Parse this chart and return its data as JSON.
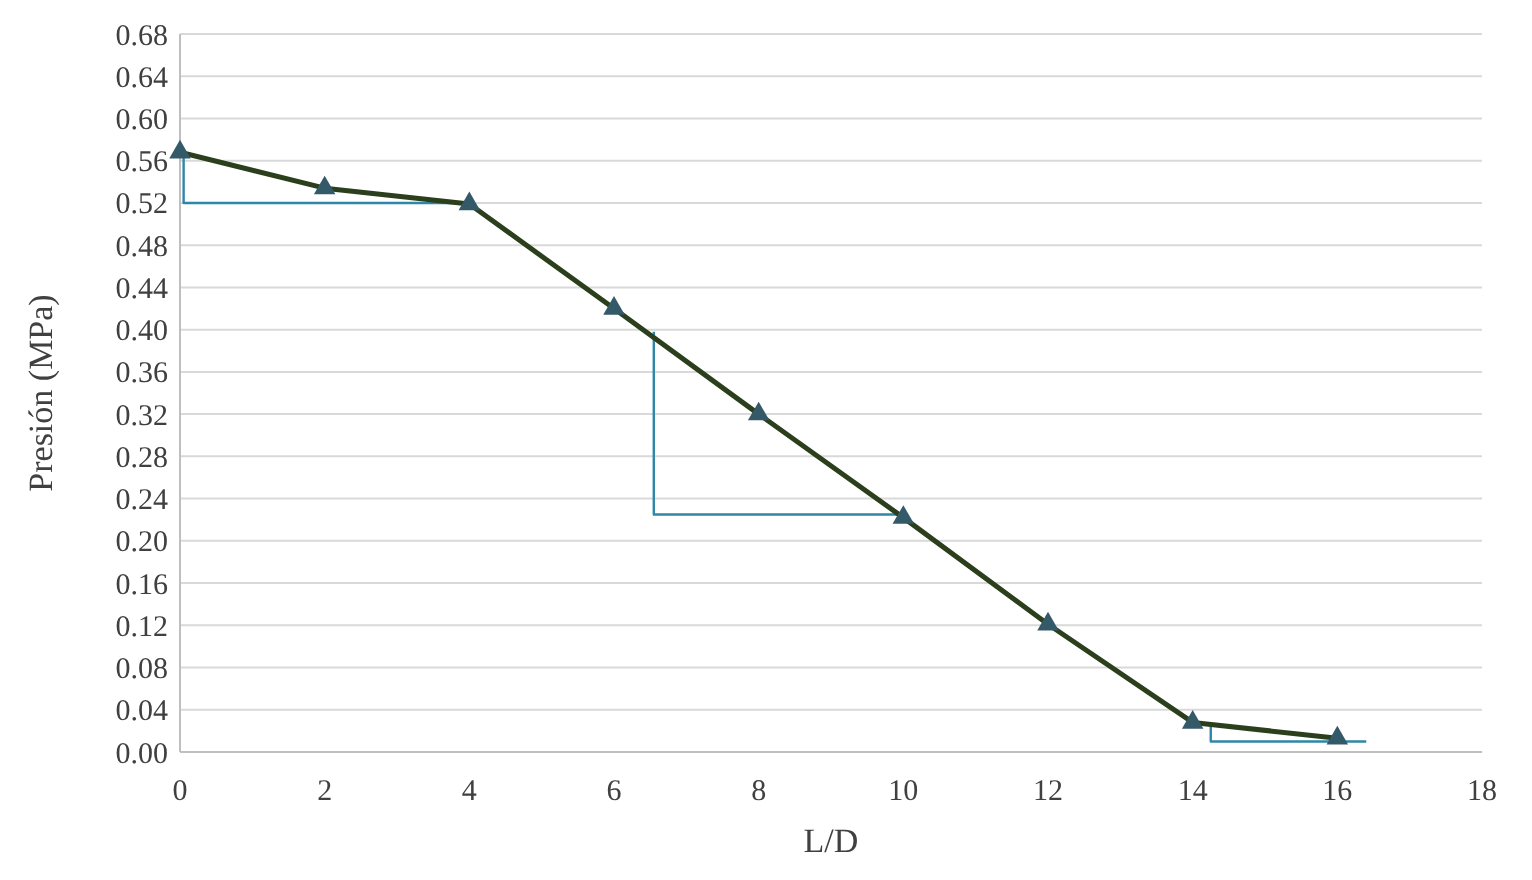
{
  "chart_data": {
    "type": "line",
    "xlabel": "L/D",
    "ylabel": "Presión (MPa)",
    "xlim": [
      0,
      18
    ],
    "xticks": [
      0,
      2,
      4,
      6,
      8,
      10,
      12,
      14,
      16,
      18
    ],
    "ylim": [
      0,
      0.68
    ],
    "yticks": [
      {
        "value": 0,
        "label": "0.00"
      },
      {
        "value": 0.04,
        "label": "0.04"
      },
      {
        "value": 0.08,
        "label": "0.08"
      },
      {
        "value": 0.12,
        "label": "0.12"
      },
      {
        "value": 0.16,
        "label": "0.16"
      },
      {
        "value": 0.2,
        "label": "0.20"
      },
      {
        "value": 0.24,
        "label": "0.24"
      },
      {
        "value": 0.28,
        "label": "0.28"
      },
      {
        "value": 0.32,
        "label": "0.32"
      },
      {
        "value": 0.36,
        "label": "0.36"
      },
      {
        "value": 0.4,
        "label": "0.40"
      },
      {
        "value": 0.44,
        "label": "0.44"
      },
      {
        "value": 0.48,
        "label": "0.48"
      },
      {
        "value": 0.52,
        "label": "0.52"
      },
      {
        "value": 0.56,
        "label": "0.56"
      },
      {
        "value": 0.6,
        "label": "0.60"
      },
      {
        "value": 0.64,
        "label": "0.64"
      },
      {
        "value": 0.68,
        "label": "0.68"
      }
    ],
    "grid": "y",
    "series": [
      {
        "x": [
          0.05,
          0.05,
          4
        ],
        "values": [
          0.568,
          0.52,
          0.52
        ],
        "color": "#2e86a8",
        "marker": "none"
      },
      {
        "x": [
          6.55,
          6.55,
          10
        ],
        "values": [
          0.398,
          0.225,
          0.225
        ],
        "color": "#2e86a8",
        "marker": "none"
      },
      {
        "x": [
          14.25,
          14.25,
          16.4
        ],
        "values": [
          0.026,
          0.01,
          0.01
        ],
        "color": "#2e86a8",
        "marker": "none"
      },
      {
        "x": [
          0,
          2,
          4,
          6,
          8,
          10,
          12,
          14,
          16
        ],
        "values": [
          0.568,
          0.534,
          0.519,
          0.42,
          0.32,
          0.222,
          0.121,
          0.028,
          0.013
        ],
        "color": "#2b3f1c",
        "marker": "triangle"
      }
    ]
  }
}
